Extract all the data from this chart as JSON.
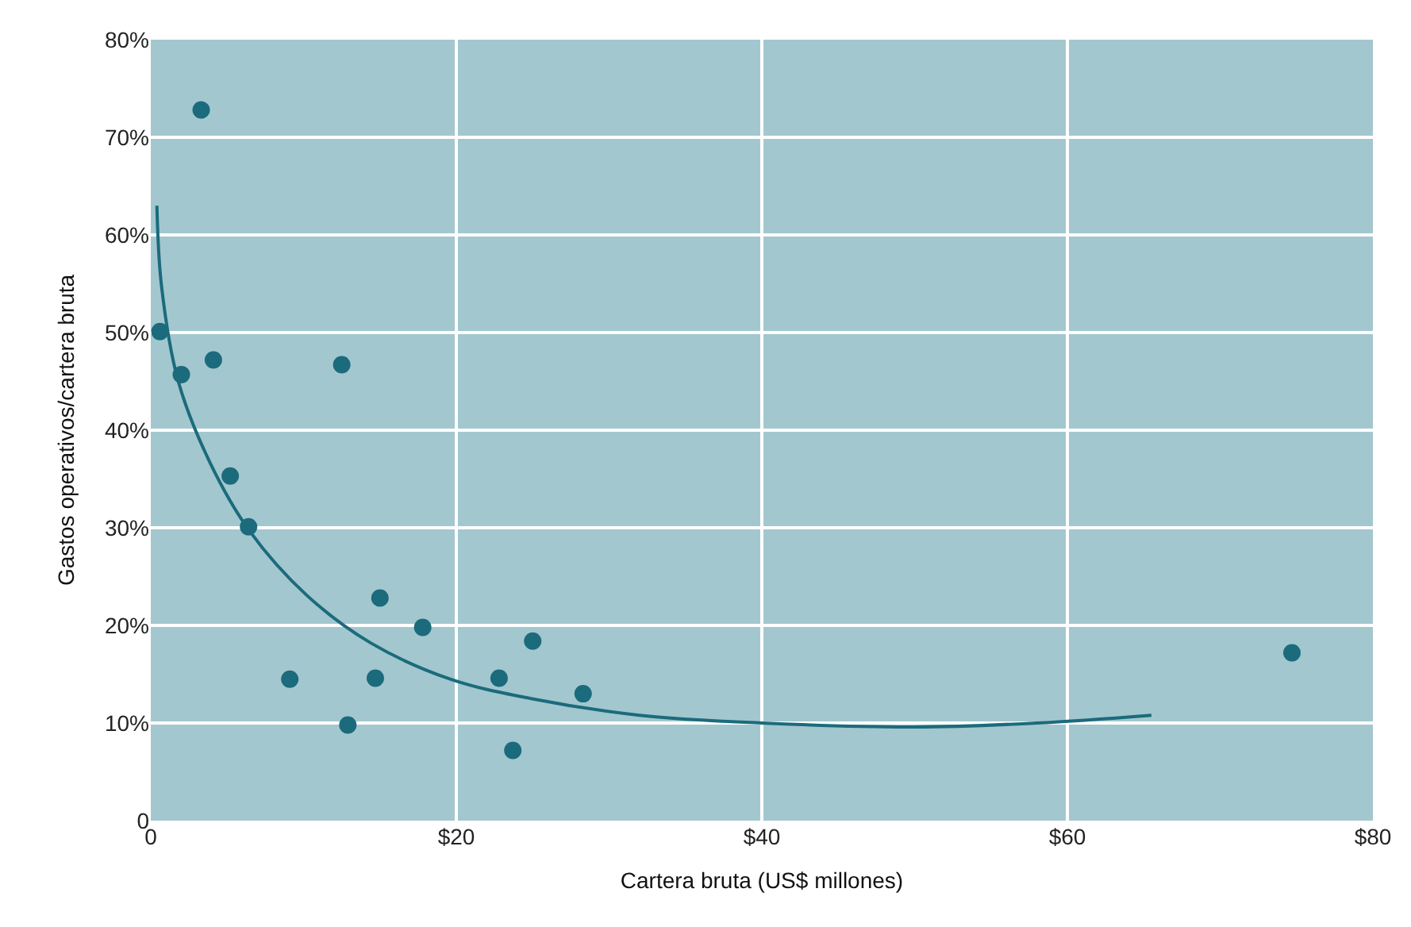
{
  "chart_data": {
    "type": "scatter",
    "xlabel": "Cartera bruta (US$ millones)",
    "ylabel": "Gastos operativos/cartera bruta",
    "series": [
      {
        "color": "#1b6b7c",
        "marker": "circle",
        "x": [
          0.6,
          3.3,
          2.0,
          4.1,
          12.5,
          5.2,
          6.4,
          15.0,
          17.8,
          9.1,
          14.7,
          12.9,
          22.8,
          25.0,
          28.3,
          23.7,
          74.7
        ],
        "values": [
          50.1,
          72.8,
          45.7,
          47.2,
          46.7,
          35.3,
          30.1,
          22.8,
          19.8,
          14.5,
          14.6,
          9.8,
          14.6,
          18.4,
          13.0,
          7.2,
          17.2
        ]
      },
      {
        "type": "line",
        "color": "#1b6b7c",
        "marker": "none",
        "x": [
          0.4,
          0.7,
          1.8,
          3.9,
          6.5,
          10.2,
          14.4,
          19.6,
          24.9,
          32,
          40,
          50,
          58,
          65.5
        ],
        "values": [
          63,
          54.8,
          45,
          36.6,
          29.6,
          23.1,
          18.2,
          14.5,
          12.5,
          10.8,
          10.0,
          9.6,
          10.0,
          10.8
        ]
      }
    ],
    "xlim": [
      0,
      80
    ],
    "xticks": [
      0,
      {
        "value": 20,
        "label": "$20"
      },
      {
        "value": 40,
        "label": "$40"
      },
      {
        "value": 60,
        "label": "$60"
      },
      {
        "value": 80,
        "label": "$80"
      }
    ],
    "ylim": [
      0,
      80
    ],
    "yticks": [
      0,
      {
        "value": 10,
        "label": "10%"
      },
      {
        "value": 20,
        "label": "20%"
      },
      {
        "value": 30,
        "label": "30%"
      },
      {
        "value": 40,
        "label": "40%"
      },
      {
        "value": 50,
        "label": "50%"
      },
      {
        "value": 60,
        "label": "60%"
      },
      {
        "value": 70,
        "label": "70%"
      },
      {
        "value": 80,
        "label": "80%"
      }
    ],
    "grid": true
  }
}
